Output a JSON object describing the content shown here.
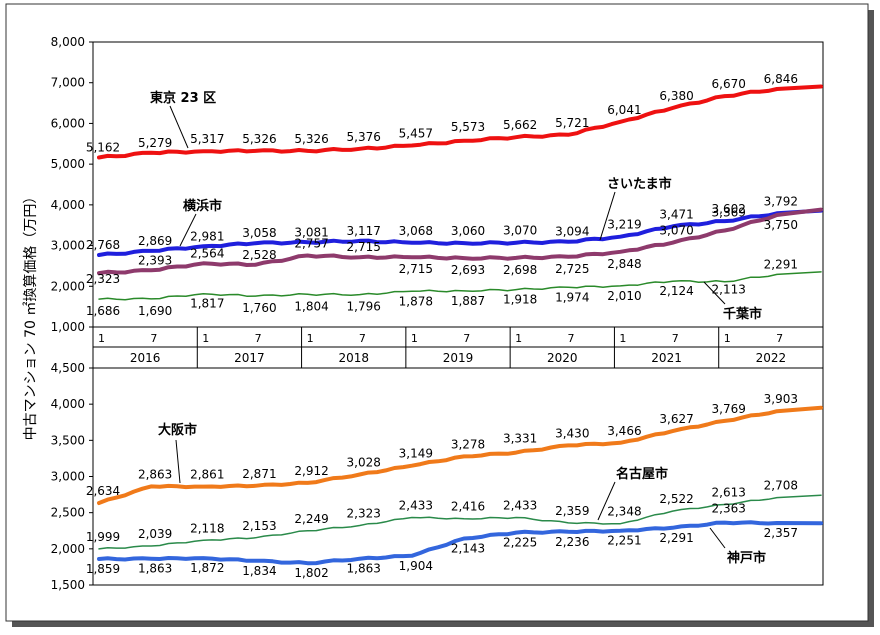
{
  "ylabel": "中古マンション 70 ㎡換算価格（万円）",
  "colors": {
    "tokyo": "#ee1111",
    "yokohama": "#1f1fdd",
    "saitama": "#8e3a6c",
    "chiba": "#2a8a2a",
    "osaka": "#f07a1a",
    "nagoya": "#2a8a4a",
    "kobe": "#3366dd"
  },
  "time_axis": {
    "months": [
      "1",
      "7",
      "1",
      "7",
      "1",
      "7",
      "1",
      "7",
      "1",
      "7",
      "1",
      "7",
      "1",
      "7"
    ],
    "years": [
      "2016",
      "2017",
      "2018",
      "2019",
      "2020",
      "2021",
      "2022"
    ]
  },
  "chart_data": [
    {
      "type": "line",
      "ylim": [
        1000,
        8000
      ],
      "yticks": [
        "1,000",
        "2,000",
        "3,000",
        "4,000",
        "5,000",
        "6,000",
        "7,000",
        "8,000"
      ],
      "x_labels": [
        "2016-1",
        "2016-7",
        "2017-1",
        "2017-7",
        "2018-1",
        "2018-7",
        "2019-1",
        "2019-7",
        "2020-1",
        "2020-7",
        "2021-1",
        "2021-7",
        "2022-1",
        "2022-7"
      ],
      "series": [
        {
          "name": "東京 23 区",
          "key": "tokyo",
          "values": [
            5162,
            5279,
            5317,
            5326,
            5326,
            5376,
            5457,
            5573,
            5662,
            5721,
            6041,
            6380,
            6670,
            6846
          ],
          "labels": [
            "5,162",
            "5,279",
            "5,317",
            "5,326",
            "5,326",
            "5,376",
            "5,457",
            "5,573",
            "5,662",
            "5,721",
            "6,041",
            "6,380",
            "6,670",
            "6,846"
          ]
        },
        {
          "name": "横浜市",
          "key": "yokohama",
          "values": [
            2768,
            2869,
            2981,
            3058,
            3081,
            3117,
            3068,
            3060,
            3070,
            3094,
            3219,
            3471,
            3602,
            3792
          ],
          "labels": [
            "2,768",
            "2,869",
            "2,981",
            "3,058",
            "3,081",
            "3,117",
            "3,068",
            "3,060",
            "3,070",
            "3,094",
            "3,219",
            "3,471",
            "3,602",
            "3,792"
          ]
        },
        {
          "name": "さいたま市",
          "key": "saitama",
          "values": [
            2323,
            2393,
            2564,
            2528,
            2757,
            2715,
            2715,
            2693,
            2698,
            2725,
            2848,
            3070,
            3369,
            3750
          ],
          "labels": [
            "2,323",
            "2,393",
            "2,564",
            "2,528",
            "2,757",
            "2,715",
            "2,715",
            "2,693",
            "2,698",
            "2,725",
            "2,848",
            "3,070",
            "3,369",
            "3,750"
          ]
        },
        {
          "name": "千葉市",
          "key": "chiba",
          "values": [
            1686,
            1690,
            1817,
            1760,
            1804,
            1796,
            1878,
            1887,
            1918,
            1974,
            2010,
            2124,
            2113,
            2291
          ],
          "labels": [
            "1,686",
            "1,690",
            "1,817",
            "1,760",
            "1,804",
            "1,796",
            "1,878",
            "1,887",
            "1,918",
            "1,974",
            "2,010",
            "2,124",
            "2,113",
            "2,291"
          ]
        }
      ]
    },
    {
      "type": "line",
      "ylim": [
        1500,
        4500
      ],
      "yticks": [
        "1,500",
        "2,000",
        "2,500",
        "3,000",
        "3,500",
        "4,000",
        "4,500"
      ],
      "x_labels": [
        "2016-1",
        "2016-7",
        "2017-1",
        "2017-7",
        "2018-1",
        "2018-7",
        "2019-1",
        "2019-7",
        "2020-1",
        "2020-7",
        "2021-1",
        "2021-7",
        "2022-1",
        "2022-7"
      ],
      "series": [
        {
          "name": "大阪市",
          "key": "osaka",
          "values": [
            2634,
            2863,
            2861,
            2871,
            2912,
            3028,
            3149,
            3278,
            3331,
            3430,
            3466,
            3627,
            3769,
            3903
          ],
          "labels": [
            "2,634",
            "2,863",
            "2,861",
            "2,871",
            "2,912",
            "3,028",
            "3,149",
            "3,278",
            "3,331",
            "3,430",
            "3,466",
            "3,627",
            "3,769",
            "3,903"
          ]
        },
        {
          "name": "名古屋市",
          "key": "nagoya",
          "values": [
            1999,
            2039,
            2118,
            2153,
            2249,
            2323,
            2433,
            2416,
            2433,
            2359,
            2348,
            2522,
            2613,
            2708
          ],
          "labels": [
            "1,999",
            "2,039",
            "2,118",
            "2,153",
            "2,249",
            "2,323",
            "2,433",
            "2,416",
            "2,433",
            "2,359",
            "2,348",
            "2,522",
            "2,613",
            "2,708"
          ]
        },
        {
          "name": "神戸市",
          "key": "kobe",
          "values": [
            1859,
            1863,
            1872,
            1834,
            1802,
            1863,
            1904,
            2143,
            2225,
            2236,
            2251,
            2291,
            2363,
            2357
          ],
          "labels": [
            "1,859",
            "1,863",
            "1,872",
            "1,834",
            "1,802",
            "1,863",
            "1,904",
            "2,143",
            "2,225",
            "2,236",
            "2,251",
            "2,291",
            "2,363",
            "2,357"
          ]
        }
      ]
    }
  ]
}
